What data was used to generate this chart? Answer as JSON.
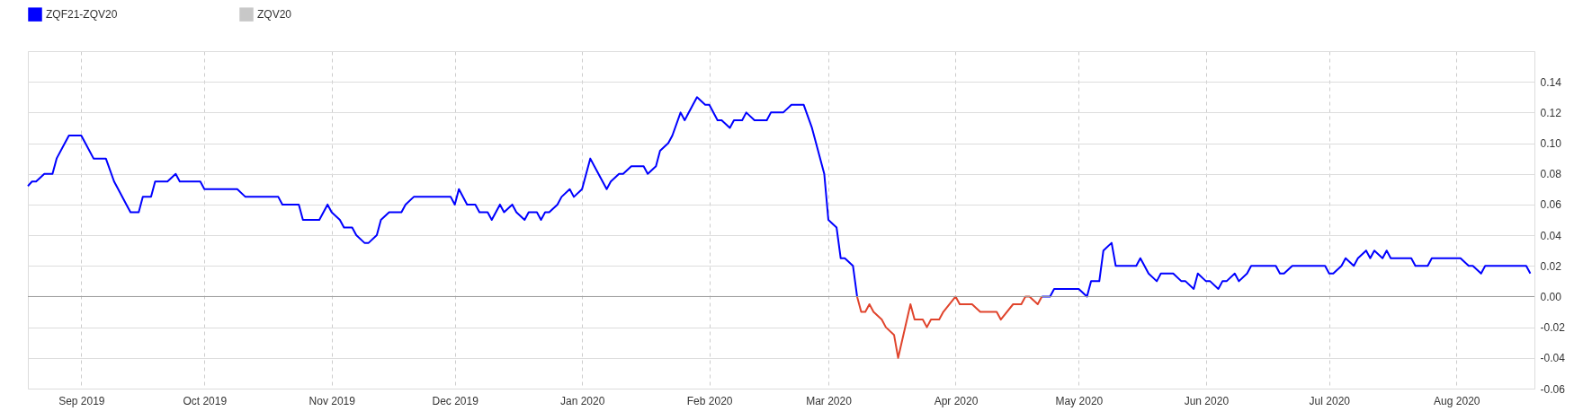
{
  "chart_data": {
    "type": "line",
    "xlim": [
      "2019-08-19",
      "2020-08-20"
    ],
    "xticks": [
      {
        "value": "2019-09-01",
        "label": "Sep 2019"
      },
      {
        "value": "2019-10-01",
        "label": "Oct 2019"
      },
      {
        "value": "2019-11-01",
        "label": "Nov 2019"
      },
      {
        "value": "2019-12-01",
        "label": "Dec 2019"
      },
      {
        "value": "2020-01-01",
        "label": "Jan 2020"
      },
      {
        "value": "2020-02-01",
        "label": "Feb 2020"
      },
      {
        "value": "2020-03-01",
        "label": "Mar 2020"
      },
      {
        "value": "2020-04-01",
        "label": "Apr 2020"
      },
      {
        "value": "2020-05-01",
        "label": "May 2020"
      },
      {
        "value": "2020-06-01",
        "label": "Jun 2020"
      },
      {
        "value": "2020-07-01",
        "label": "Jul 2020"
      },
      {
        "value": "2020-08-01",
        "label": "Aug 2020"
      }
    ],
    "ylim": [
      -0.06,
      0.16
    ],
    "yticks": [
      {
        "value": -0.06,
        "label": "-0.06"
      },
      {
        "value": -0.04,
        "label": "-0.04"
      },
      {
        "value": -0.02,
        "label": "-0.02"
      },
      {
        "value": 0,
        "label": "0.00"
      },
      {
        "value": 0.02,
        "label": "0.02"
      },
      {
        "value": 0.04,
        "label": "0.04"
      },
      {
        "value": 0.06,
        "label": "0.06"
      },
      {
        "value": 0.08,
        "label": "0.08"
      },
      {
        "value": 0.1,
        "label": "0.10"
      },
      {
        "value": 0.12,
        "label": "0.12"
      },
      {
        "value": 0.14,
        "label": "0.14"
      },
      {
        "value": 0.16,
        "label": null
      }
    ],
    "grid": true,
    "legend": "top left",
    "ref_lines": [
      {
        "axis": "y",
        "value": 0,
        "color": "#999999"
      }
    ],
    "series": [
      {
        "name": "ZQF21-ZQV20",
        "color": "#0000ff",
        "x": [
          "2019-08-19",
          "2019-08-20",
          "2019-08-21",
          "2019-08-23",
          "2019-08-25",
          "2019-08-26",
          "2019-08-28",
          "2019-08-29",
          "2019-09-01",
          "2019-09-02",
          "2019-09-04",
          "2019-09-07",
          "2019-09-09",
          "2019-09-10",
          "2019-09-12",
          "2019-09-13",
          "2019-09-15",
          "2019-09-16",
          "2019-09-18",
          "2019-09-19",
          "2019-09-22",
          "2019-09-24",
          "2019-09-25",
          "2019-09-30",
          "2019-10-01",
          "2019-10-09",
          "2019-10-11",
          "2019-10-19",
          "2019-10-20",
          "2019-10-24",
          "2019-10-25",
          "2019-10-29",
          "2019-10-31",
          "2019-11-01",
          "2019-11-03",
          "2019-11-04",
          "2019-11-06",
          "2019-11-07",
          "2019-11-09",
          "2019-11-10",
          "2019-11-12",
          "2019-11-13",
          "2019-11-15",
          "2019-11-18",
          "2019-11-19",
          "2019-11-21",
          "2019-11-30",
          "2019-12-01",
          "2019-12-02",
          "2019-12-04",
          "2019-12-06",
          "2019-12-07",
          "2019-12-09",
          "2019-12-10",
          "2019-12-12",
          "2019-12-13",
          "2019-12-15",
          "2019-12-16",
          "2019-12-18",
          "2019-12-19",
          "2019-12-21",
          "2019-12-22",
          "2019-12-23",
          "2019-12-24",
          "2019-12-26",
          "2019-12-27",
          "2019-12-29",
          "2019-12-30",
          "2020-01-01",
          "2020-01-03",
          "2020-01-04",
          "2020-01-05",
          "2020-01-07",
          "2020-01-08",
          "2020-01-10",
          "2020-01-11",
          "2020-01-13",
          "2020-01-16",
          "2020-01-17",
          "2020-01-19",
          "2020-01-20",
          "2020-01-22",
          "2020-01-23",
          "2020-01-25",
          "2020-01-26",
          "2020-01-28",
          "2020-01-29",
          "2020-01-31",
          "2020-02-01",
          "2020-02-03",
          "2020-02-04",
          "2020-02-06",
          "2020-02-07",
          "2020-02-09",
          "2020-02-10",
          "2020-02-12",
          "2020-02-15",
          "2020-02-16",
          "2020-02-19",
          "2020-02-21",
          "2020-02-24",
          "2020-02-26",
          "2020-02-27",
          "2020-02-29",
          "2020-03-01",
          "2020-03-03",
          "2020-03-04",
          "2020-03-05",
          "2020-03-07",
          "2020-03-08",
          "2020-03-15",
          "2020-04-22",
          "2020-04-24",
          "2020-04-25",
          "2020-05-01",
          "2020-05-03",
          "2020-05-04",
          "2020-05-06",
          "2020-05-07",
          "2020-05-09",
          "2020-05-10",
          "2020-05-15",
          "2020-05-16",
          "2020-05-18",
          "2020-05-20",
          "2020-05-21",
          "2020-05-24",
          "2020-05-26",
          "2020-05-27",
          "2020-05-29",
          "2020-05-30",
          "2020-06-01",
          "2020-06-02",
          "2020-06-04",
          "2020-06-05",
          "2020-06-06",
          "2020-06-08",
          "2020-06-09",
          "2020-06-11",
          "2020-06-12",
          "2020-06-18",
          "2020-06-19",
          "2020-06-20",
          "2020-06-22",
          "2020-06-30",
          "2020-07-01",
          "2020-07-02",
          "2020-07-04",
          "2020-07-05",
          "2020-07-07",
          "2020-07-08",
          "2020-07-10",
          "2020-07-11",
          "2020-07-12",
          "2020-07-14",
          "2020-07-15",
          "2020-07-16",
          "2020-07-21",
          "2020-07-22",
          "2020-07-25",
          "2020-07-26",
          "2020-08-02",
          "2020-08-04",
          "2020-08-05",
          "2020-08-07",
          "2020-08-08",
          "2020-08-18",
          "2020-08-19"
        ],
        "values": [
          0.072,
          0.075,
          0.075,
          0.08,
          0.08,
          0.09,
          0.1,
          0.105,
          0.105,
          0.1,
          0.09,
          0.09,
          0.075,
          0.07,
          0.06,
          0.055,
          0.055,
          0.065,
          0.065,
          0.075,
          0.075,
          0.08,
          0.075,
          0.075,
          0.07,
          0.07,
          0.065,
          0.065,
          0.06,
          0.06,
          0.05,
          0.05,
          0.06,
          0.055,
          0.05,
          0.045,
          0.045,
          0.04,
          0.035,
          0.035,
          0.04,
          0.05,
          0.055,
          0.055,
          0.06,
          0.065,
          0.065,
          0.06,
          0.07,
          0.06,
          0.06,
          0.055,
          0.055,
          0.05,
          0.06,
          0.055,
          0.06,
          0.055,
          0.05,
          0.055,
          0.055,
          0.05,
          0.055,
          0.055,
          0.06,
          0.065,
          0.07,
          0.065,
          0.07,
          0.09,
          0.085,
          0.08,
          0.07,
          0.075,
          0.08,
          0.08,
          0.085,
          0.085,
          0.08,
          0.085,
          0.095,
          0.1,
          0.105,
          0.12,
          0.115,
          0.125,
          0.13,
          0.125,
          0.125,
          0.115,
          0.115,
          0.11,
          0.115,
          0.115,
          0.12,
          0.115,
          0.115,
          0.12,
          0.12,
          0.125,
          0.125,
          0.11,
          0.1,
          0.08,
          0.05,
          0.045,
          0.025,
          0.025,
          0.02,
          0.0,
          null,
          0.0,
          0.0,
          0.005,
          0.005,
          0.0,
          0.01,
          0.01,
          0.03,
          0.035,
          0.02,
          0.02,
          0.025,
          0.015,
          0.01,
          0.015,
          0.015,
          0.01,
          0.01,
          0.005,
          0.015,
          0.01,
          0.01,
          0.005,
          0.01,
          0.01,
          0.015,
          0.01,
          0.015,
          0.02,
          0.02,
          0.015,
          0.015,
          0.02,
          0.02,
          0.015,
          0.015,
          0.02,
          0.025,
          0.02,
          0.025,
          0.03,
          0.025,
          0.03,
          0.025,
          0.03,
          0.025,
          0.025,
          0.02,
          0.02,
          0.025,
          0.025,
          0.02,
          0.02,
          0.015,
          0.02,
          0.02,
          0.015
        ]
      },
      {
        "color": "#e0442c",
        "x": [
          "2020-03-08",
          "2020-03-09",
          "2020-03-10",
          "2020-03-11",
          "2020-03-12",
          "2020-03-14",
          "2020-03-15",
          "2020-03-17",
          "2020-03-18",
          "2020-03-21",
          "2020-03-22",
          "2020-03-24",
          "2020-03-25",
          "2020-03-26",
          "2020-03-28",
          "2020-03-29",
          "2020-04-01",
          "2020-04-02",
          "2020-04-05",
          "2020-04-07",
          "2020-04-11",
          "2020-04-12",
          "2020-04-15",
          "2020-04-17",
          "2020-04-18",
          "2020-04-19",
          "2020-04-21",
          "2020-04-22"
        ],
        "values": [
          0.0,
          -0.01,
          -0.01,
          -0.005,
          -0.01,
          -0.015,
          -0.02,
          -0.025,
          -0.04,
          -0.005,
          -0.015,
          -0.015,
          -0.02,
          -0.015,
          -0.015,
          -0.01,
          0.0,
          -0.005,
          -0.005,
          -0.01,
          -0.01,
          -0.015,
          -0.005,
          -0.005,
          0.0,
          0.0,
          -0.005,
          0.0
        ]
      },
      {
        "name": "ZQV20",
        "color": "#c8c8c8"
      }
    ]
  }
}
